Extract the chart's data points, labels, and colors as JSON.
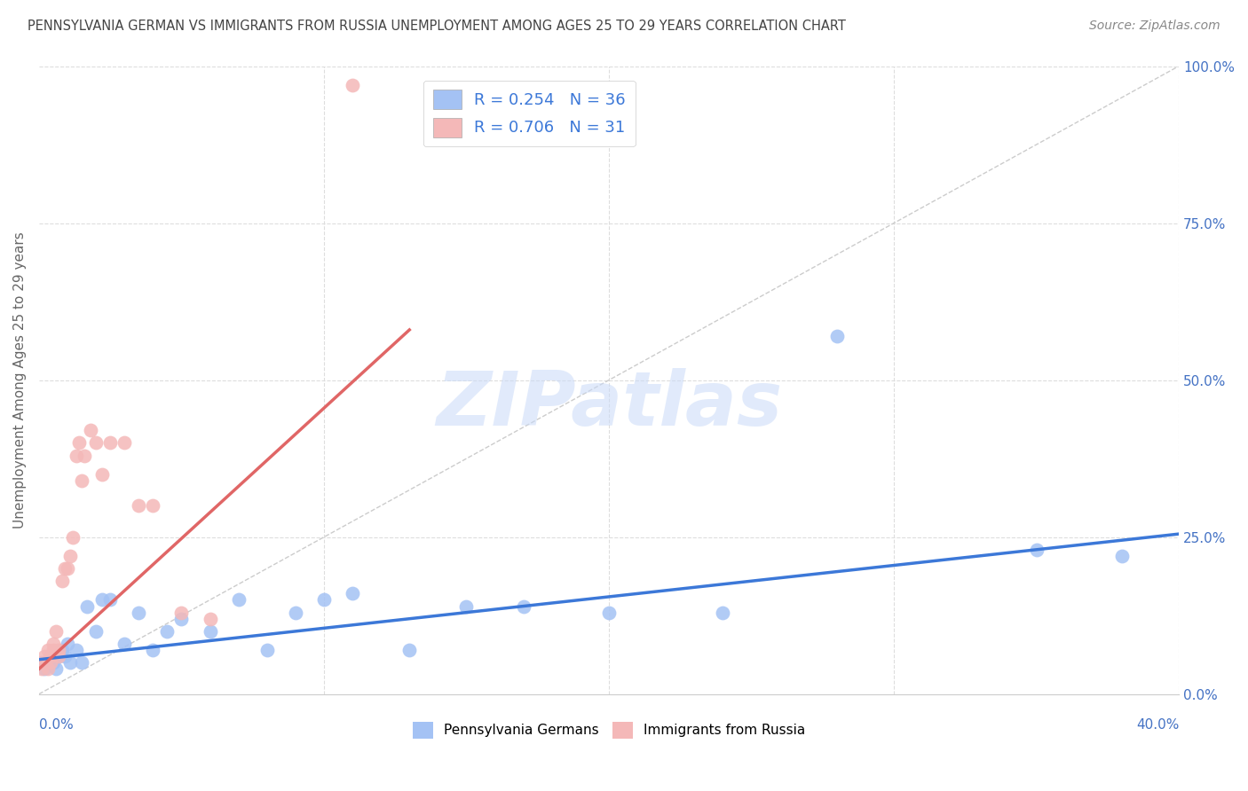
{
  "title": "PENNSYLVANIA GERMAN VS IMMIGRANTS FROM RUSSIA UNEMPLOYMENT AMONG AGES 25 TO 29 YEARS CORRELATION CHART",
  "source": "Source: ZipAtlas.com",
  "ylabel": "Unemployment Among Ages 25 to 29 years",
  "ylabel_right_ticks": [
    "0.0%",
    "25.0%",
    "50.0%",
    "75.0%",
    "100.0%"
  ],
  "ylabel_right_vals": [
    0.0,
    0.25,
    0.5,
    0.75,
    1.0
  ],
  "watermark": "ZIPatlas",
  "legend_R1": "R = 0.254",
  "legend_N1": "N = 36",
  "legend_R2": "R = 0.706",
  "legend_N2": "N = 31",
  "blue_color": "#a4c2f4",
  "pink_color": "#f4b8b8",
  "blue_line_color": "#3c78d8",
  "pink_line_color": "#e06666",
  "diag_line_color": "#cccccc",
  "title_color": "#444444",
  "source_color": "#888888",
  "blue_scatter_x": [
    0.001,
    0.002,
    0.003,
    0.004,
    0.005,
    0.006,
    0.007,
    0.008,
    0.009,
    0.01,
    0.011,
    0.013,
    0.015,
    0.017,
    0.02,
    0.022,
    0.025,
    0.03,
    0.035,
    0.04,
    0.045,
    0.05,
    0.06,
    0.07,
    0.08,
    0.09,
    0.1,
    0.11,
    0.13,
    0.15,
    0.17,
    0.2,
    0.24,
    0.28,
    0.35,
    0.38
  ],
  "blue_scatter_y": [
    0.05,
    0.04,
    0.05,
    0.06,
    0.05,
    0.04,
    0.06,
    0.07,
    0.06,
    0.08,
    0.05,
    0.07,
    0.05,
    0.14,
    0.1,
    0.15,
    0.15,
    0.08,
    0.13,
    0.07,
    0.1,
    0.12,
    0.1,
    0.15,
    0.07,
    0.13,
    0.15,
    0.16,
    0.07,
    0.14,
    0.14,
    0.13,
    0.13,
    0.57,
    0.23,
    0.22
  ],
  "pink_scatter_x": [
    0.001,
    0.002,
    0.002,
    0.003,
    0.003,
    0.004,
    0.004,
    0.005,
    0.005,
    0.006,
    0.007,
    0.007,
    0.008,
    0.009,
    0.01,
    0.011,
    0.012,
    0.013,
    0.014,
    0.015,
    0.016,
    0.018,
    0.02,
    0.022,
    0.025,
    0.03,
    0.035,
    0.04,
    0.05,
    0.06,
    0.11
  ],
  "pink_scatter_y": [
    0.04,
    0.05,
    0.06,
    0.04,
    0.07,
    0.05,
    0.06,
    0.07,
    0.08,
    0.1,
    0.06,
    0.07,
    0.18,
    0.2,
    0.2,
    0.22,
    0.25,
    0.38,
    0.4,
    0.34,
    0.38,
    0.42,
    0.4,
    0.35,
    0.4,
    0.4,
    0.3,
    0.3,
    0.13,
    0.12,
    0.97
  ],
  "blue_line_x": [
    0.0,
    0.4
  ],
  "blue_line_y": [
    0.055,
    0.255
  ],
  "pink_line_x": [
    0.0,
    0.13
  ],
  "pink_line_y": [
    0.04,
    0.58
  ],
  "xlim": [
    0.0,
    0.4
  ],
  "ylim": [
    0.0,
    1.0
  ],
  "figsize": [
    14.06,
    8.92
  ],
  "dpi": 100
}
